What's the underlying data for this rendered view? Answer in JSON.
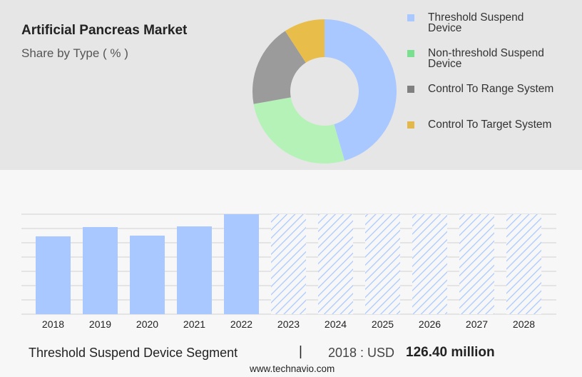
{
  "chart_data": [
    {
      "type": "donut",
      "title": "Artificial Pancreas Market",
      "subtitle": "Share by Type ( % )",
      "categories": [
        "Threshold Suspend Device",
        "Non-threshold Suspend Device",
        "Control To Range System",
        "Control To Target System"
      ],
      "values": [
        45.5,
        26.7,
        18.6,
        9.2
      ],
      "colors": [
        "#a9c8ff",
        "#b5f2b8",
        "#9b9b9b",
        "#e8bd4a"
      ],
      "legend_colors": [
        "#a9c8ff",
        "#78e08f",
        "#808080",
        "#e3b84a"
      ]
    },
    {
      "type": "bar",
      "categories": [
        "2018",
        "2019",
        "2020",
        "2021",
        "2022",
        "2023",
        "2024",
        "2025",
        "2026",
        "2027",
        "2028"
      ],
      "values": [
        126.4,
        141.5,
        127.6,
        142.6,
        162.4,
        null,
        null,
        null,
        null,
        null,
        null
      ],
      "color": "#a9c8ff",
      "ylim": [
        0,
        162.4
      ],
      "grid": true
    }
  ],
  "footer": {
    "segment": "Threshold Suspend Device Segment",
    "separator": "|",
    "year": "2018 : USD",
    "amount": "126.40 million"
  },
  "source": "www.technavio.com"
}
